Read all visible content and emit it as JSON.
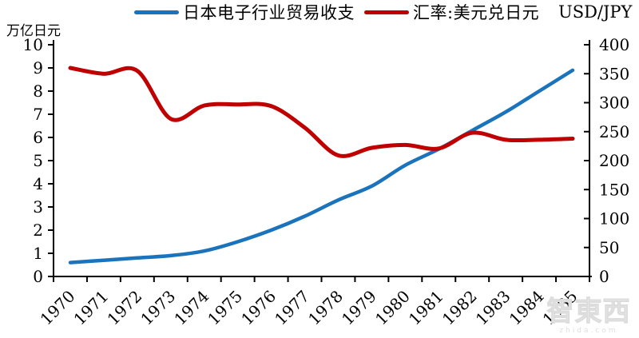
{
  "background": "#ffffff",
  "watermark": {
    "text": "智東西",
    "subtext": "zhida.com",
    "color": "#dedede"
  },
  "chart_data": {
    "type": "line",
    "smooth": true,
    "grid": false,
    "legend_position": "top",
    "categories": [
      "1970",
      "1971",
      "1972",
      "1973",
      "1974",
      "1975",
      "1976",
      "1977",
      "1978",
      "1979",
      "1980",
      "1981",
      "1982",
      "1983",
      "1984",
      "1985"
    ],
    "series": [
      {
        "key": "trade-balance",
        "name": "日本电子行业贸易收支",
        "axis": "left",
        "color": "#1B74BB",
        "width": 4.5,
        "values": [
          0.6,
          0.7,
          0.8,
          0.9,
          1.1,
          1.5,
          2.0,
          2.6,
          3.3,
          3.9,
          4.8,
          5.5,
          6.3,
          7.1,
          8.0,
          8.9
        ]
      },
      {
        "key": "usdjpy",
        "name": "汇率:美元兑日元",
        "axis": "right",
        "color": "#C00000",
        "width": 5,
        "values": [
          360,
          350,
          355,
          272,
          295,
          297,
          294,
          257,
          209,
          222,
          227,
          221,
          248,
          236,
          236,
          238
        ]
      }
    ],
    "left_axis": {
      "title": "万亿日元",
      "min": 0,
      "max": 10,
      "step": 1,
      "tick_labels": [
        "0",
        "1",
        "2",
        "3",
        "4",
        "5",
        "6",
        "7",
        "8",
        "9",
        "10"
      ]
    },
    "right_axis": {
      "title": "USD/JPY",
      "min": 0,
      "max": 400,
      "step": 50,
      "tick_labels": [
        "0",
        "50",
        "100",
        "150",
        "200",
        "250",
        "300",
        "350",
        "400"
      ]
    },
    "axis_color": "#000000",
    "tick_label_color": "#000000"
  }
}
